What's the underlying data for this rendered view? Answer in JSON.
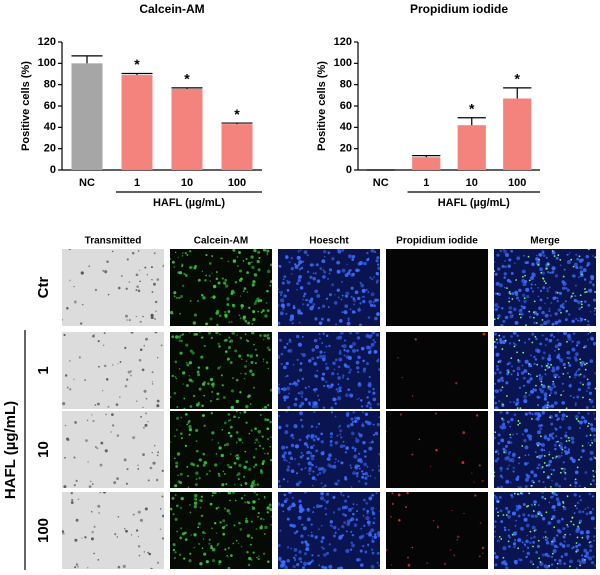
{
  "chart_data": [
    {
      "type": "bar",
      "title": "Calcein-AM",
      "ylabel": "Positive cells (%)",
      "categories": [
        "NC",
        "1",
        "10",
        "100"
      ],
      "values": [
        100,
        89,
        76,
        43
      ],
      "errors": [
        7,
        1.5,
        1,
        1
      ],
      "significance": [
        null,
        "*",
        "*",
        "*"
      ],
      "colors": [
        "#a6a6a6",
        "#f4837d",
        "#f4837d",
        "#f4837d"
      ],
      "group_label": "HAFL (µg/mL)",
      "ylim": [
        0,
        120
      ],
      "yticks": [
        0,
        20,
        40,
        60,
        80,
        100,
        120
      ]
    },
    {
      "type": "bar",
      "title": "Propidium iodide",
      "ylabel": "Positive cells (%)",
      "categories": [
        "NC",
        "1",
        "10",
        "100"
      ],
      "values": [
        0,
        12,
        42,
        67
      ],
      "errors": [
        0,
        1.5,
        7,
        10
      ],
      "significance": [
        null,
        null,
        "*",
        "*"
      ],
      "colors": [
        "#a6a6a6",
        "#f4837d",
        "#f4837d",
        "#f4837d"
      ],
      "group_label": "HAFL (µg/mL)",
      "ylim": [
        0,
        120
      ],
      "yticks": [
        0,
        20,
        40,
        60,
        80,
        100,
        120
      ]
    }
  ],
  "image_grid": {
    "columns": [
      "Transmitted",
      "Calcein-AM",
      "Hoescht",
      "Propidium iodide",
      "Merge"
    ],
    "rows": [
      "Ctr",
      "1",
      "10",
      "100"
    ],
    "group_label": "HAFL (µg/mL)"
  }
}
